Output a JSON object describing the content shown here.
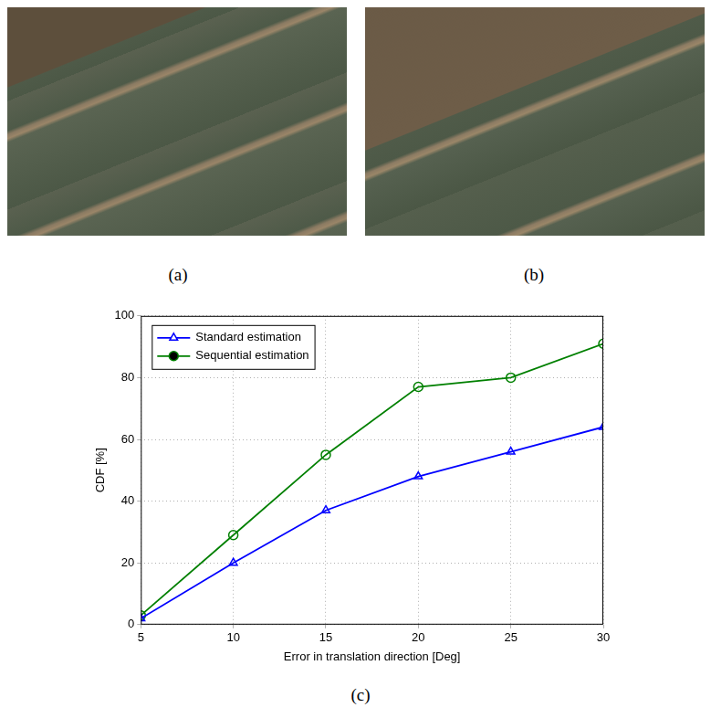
{
  "panel_labels": [
    "(a)",
    "(b)",
    "(c)"
  ],
  "chart_data": {
    "type": "line",
    "x_label": "Error in translation direction [Deg]",
    "y_label": "CDF [%]",
    "x": [
      5,
      10,
      15,
      20,
      25,
      30
    ],
    "series": [
      {
        "name": "Standard estimation",
        "color": "#0000ff",
        "marker": "triangle",
        "line_style": "solid",
        "values": [
          2,
          20,
          37,
          48,
          56,
          64
        ]
      },
      {
        "name": "Sequential estimation",
        "color": "#008000",
        "marker": "circle",
        "line_style": "solid",
        "values": [
          3,
          29,
          55,
          77,
          80,
          91
        ]
      }
    ],
    "xlim": [
      5,
      30
    ],
    "xticks": [
      5,
      10,
      15,
      20,
      25,
      30
    ],
    "ylim": [
      0,
      100
    ],
    "yticks": [
      0,
      20,
      40,
      60,
      80,
      100
    ],
    "grid": true,
    "legend": "upper left"
  }
}
